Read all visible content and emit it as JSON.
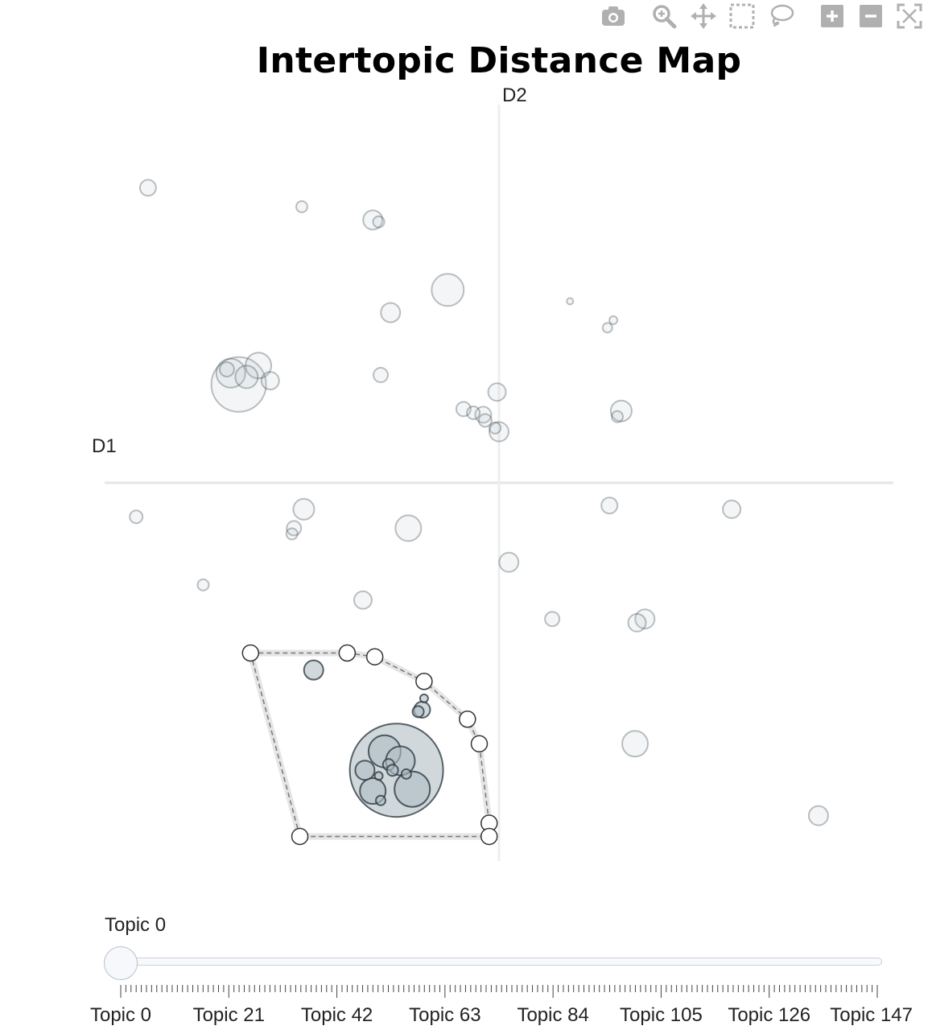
{
  "toolbar": {
    "icons": [
      "camera-icon",
      "zoom-icon",
      "pan-icon",
      "box-select-icon",
      "lasso-select-icon",
      "zoom-in-icon",
      "zoom-out-icon",
      "autoscale-icon"
    ],
    "icon_color": "#b0b0b0"
  },
  "chart_data": {
    "type": "scatter",
    "title": "Intertopic Distance Map",
    "xlabel": "D1",
    "ylabel": "D2",
    "xlim": [
      -10,
      10
    ],
    "ylim": [
      -10,
      10
    ],
    "grid": false,
    "marker_color": "#b0bec5",
    "marker_line_color": "#263238",
    "selected_opacity": 0.6,
    "unselected_opacity": 0.15,
    "points": [
      {
        "x": -8.9,
        "y": 7.8,
        "size": 10,
        "selected": false
      },
      {
        "x": -5.0,
        "y": 7.3,
        "size": 7,
        "selected": false
      },
      {
        "x": -3.2,
        "y": 6.95,
        "size": 12,
        "selected": false
      },
      {
        "x": -3.05,
        "y": 6.9,
        "size": 7,
        "selected": false
      },
      {
        "x": -1.3,
        "y": 5.1,
        "size": 20,
        "selected": false
      },
      {
        "x": -2.75,
        "y": 4.5,
        "size": 12,
        "selected": false
      },
      {
        "x": 1.8,
        "y": 4.8,
        "size": 4,
        "selected": false
      },
      {
        "x": 2.9,
        "y": 4.3,
        "size": 5,
        "selected": false
      },
      {
        "x": 2.75,
        "y": 4.1,
        "size": 6,
        "selected": false
      },
      {
        "x": -6.6,
        "y": 2.6,
        "size": 34,
        "selected": false
      },
      {
        "x": -6.8,
        "y": 2.9,
        "size": 18,
        "selected": false
      },
      {
        "x": -6.1,
        "y": 3.1,
        "size": 16,
        "selected": false
      },
      {
        "x": -6.4,
        "y": 2.8,
        "size": 14,
        "selected": false
      },
      {
        "x": -5.8,
        "y": 2.7,
        "size": 11,
        "selected": false
      },
      {
        "x": -6.9,
        "y": 3.0,
        "size": 9,
        "selected": false
      },
      {
        "x": -3.0,
        "y": 2.85,
        "size": 9,
        "selected": false
      },
      {
        "x": -0.9,
        "y": 1.95,
        "size": 9,
        "selected": false
      },
      {
        "x": -0.65,
        "y": 1.85,
        "size": 8,
        "selected": false
      },
      {
        "x": -0.4,
        "y": 1.8,
        "size": 10,
        "selected": false
      },
      {
        "x": -0.35,
        "y": 1.65,
        "size": 8,
        "selected": false
      },
      {
        "x": -0.1,
        "y": 1.45,
        "size": 7,
        "selected": false
      },
      {
        "x": 0.0,
        "y": 1.35,
        "size": 12,
        "selected": false
      },
      {
        "x": -0.05,
        "y": 2.4,
        "size": 11,
        "selected": false
      },
      {
        "x": 3.1,
        "y": 1.9,
        "size": 13,
        "selected": false
      },
      {
        "x": 3.0,
        "y": 1.75,
        "size": 7,
        "selected": false
      },
      {
        "x": -9.2,
        "y": -0.9,
        "size": 8,
        "selected": false
      },
      {
        "x": -4.95,
        "y": -0.7,
        "size": 13,
        "selected": false
      },
      {
        "x": -5.2,
        "y": -1.2,
        "size": 9,
        "selected": false
      },
      {
        "x": -5.25,
        "y": -1.35,
        "size": 7,
        "selected": false
      },
      {
        "x": -2.3,
        "y": -1.2,
        "size": 16,
        "selected": false
      },
      {
        "x": 0.25,
        "y": -2.1,
        "size": 12,
        "selected": false
      },
      {
        "x": 2.8,
        "y": -0.6,
        "size": 10,
        "selected": false
      },
      {
        "x": 5.9,
        "y": -0.7,
        "size": 11,
        "selected": false
      },
      {
        "x": -7.5,
        "y": -2.7,
        "size": 7,
        "selected": false
      },
      {
        "x": -3.45,
        "y": -3.1,
        "size": 11,
        "selected": false
      },
      {
        "x": 1.35,
        "y": -3.6,
        "size": 9,
        "selected": false
      },
      {
        "x": 3.7,
        "y": -3.6,
        "size": 12,
        "selected": false
      },
      {
        "x": 3.5,
        "y": -3.7,
        "size": 11,
        "selected": false
      },
      {
        "x": 3.45,
        "y": -6.9,
        "size": 16,
        "selected": false
      },
      {
        "x": 8.1,
        "y": -8.8,
        "size": 12,
        "selected": false
      },
      {
        "x": -4.7,
        "y": -4.95,
        "size": 12,
        "selected": true
      },
      {
        "x": -1.9,
        "y": -5.7,
        "size": 5,
        "selected": true
      },
      {
        "x": -1.95,
        "y": -6.0,
        "size": 10,
        "selected": true
      },
      {
        "x": -2.05,
        "y": -6.05,
        "size": 7,
        "selected": true
      },
      {
        "x": -2.6,
        "y": -7.6,
        "size": 58,
        "selected": true
      },
      {
        "x": -2.9,
        "y": -7.1,
        "size": 20,
        "selected": true
      },
      {
        "x": -2.5,
        "y": -7.35,
        "size": 18,
        "selected": true
      },
      {
        "x": -2.2,
        "y": -8.1,
        "size": 22,
        "selected": true
      },
      {
        "x": -3.2,
        "y": -8.15,
        "size": 16,
        "selected": true
      },
      {
        "x": -3.4,
        "y": -7.6,
        "size": 12,
        "selected": true
      },
      {
        "x": -2.8,
        "y": -7.45,
        "size": 7,
        "selected": true
      },
      {
        "x": -2.7,
        "y": -7.6,
        "size": 7,
        "selected": true
      },
      {
        "x": -2.35,
        "y": -7.7,
        "size": 6,
        "selected": true
      },
      {
        "x": -3.0,
        "y": -8.4,
        "size": 6,
        "selected": true
      },
      {
        "x": -3.05,
        "y": -7.75,
        "size": 5,
        "selected": true
      }
    ],
    "lasso_polygon": [
      [
        -6.3,
        -4.5
      ],
      [
        -3.85,
        -4.5
      ],
      [
        -3.15,
        -4.6
      ],
      [
        -1.9,
        -5.25
      ],
      [
        -0.8,
        -6.25
      ],
      [
        -0.5,
        -6.9
      ],
      [
        -0.25,
        -9.0
      ],
      [
        -0.25,
        -9.35
      ],
      [
        -5.05,
        -9.35
      ]
    ],
    "slider": {
      "current_label": "Topic 0",
      "value": 0,
      "min": 0,
      "max": 147,
      "tick_labels": [
        "Topic 0",
        "Topic 21",
        "Topic 42",
        "Topic 63",
        "Topic 84",
        "Topic 105",
        "Topic 126",
        "Topic 147"
      ]
    }
  }
}
